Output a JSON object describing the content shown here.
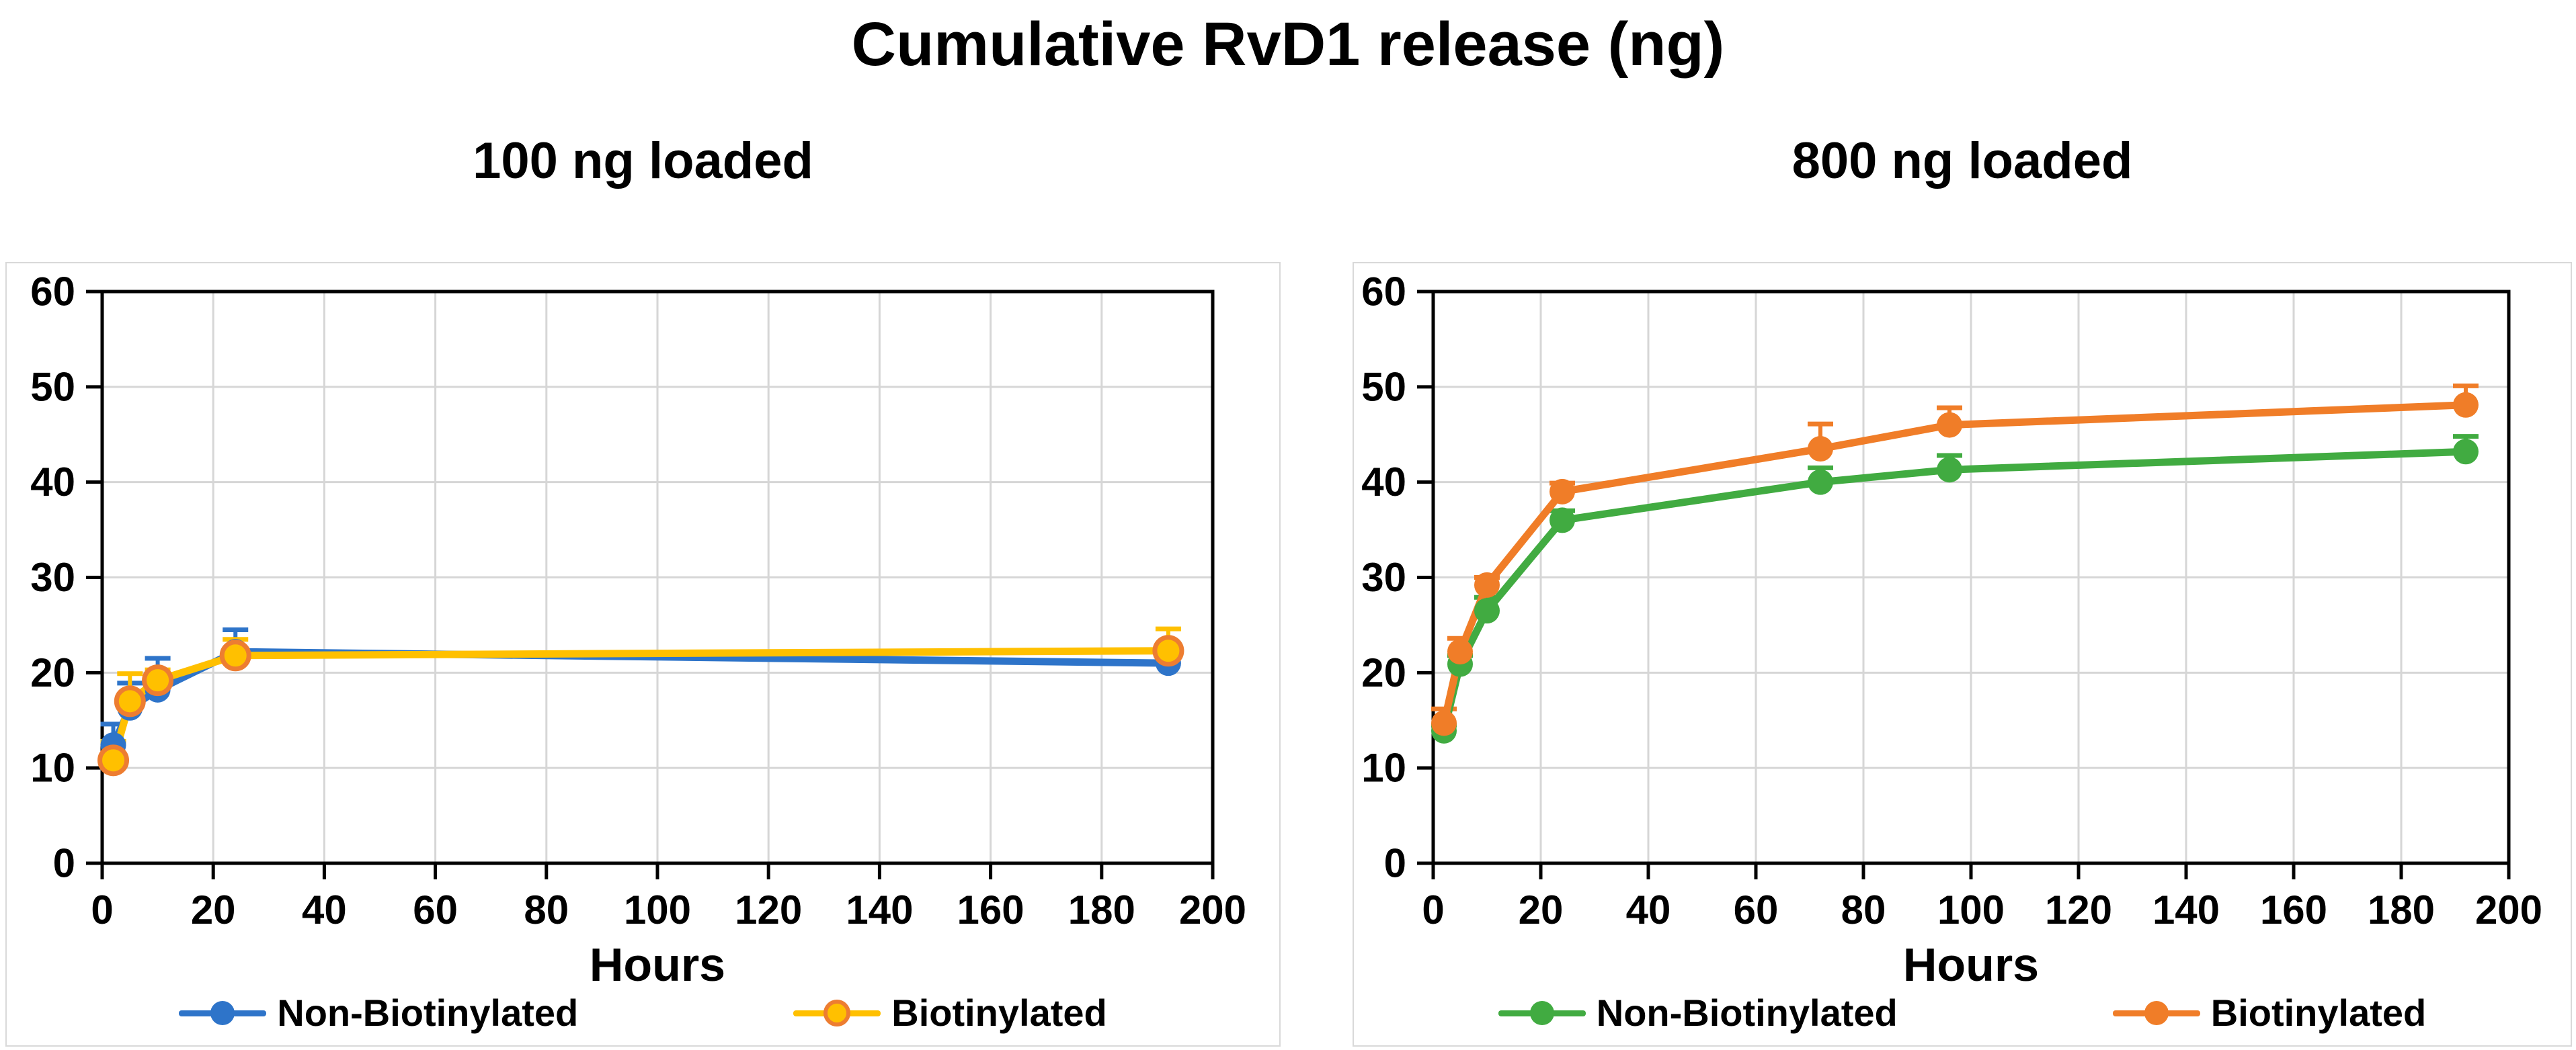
{
  "title": "Cumulative RvD1 release (ng)",
  "chart_data": [
    {
      "type": "line",
      "title": "100 ng loaded",
      "xlabel": "Hours",
      "ylabel": "",
      "xlim": [
        0,
        200
      ],
      "ylim": [
        0,
        60
      ],
      "xticks": [
        0,
        20,
        40,
        60,
        80,
        100,
        120,
        140,
        160,
        180,
        200
      ],
      "yticks": [
        0,
        10,
        20,
        30,
        40,
        50,
        60
      ],
      "grid": true,
      "legend_position": "bottom",
      "x": [
        2,
        5,
        10,
        24,
        192
      ],
      "series": [
        {
          "name": "Non-Biotinylated",
          "color": "#2E74C9",
          "marker": {
            "fill": "#2E74C9"
          },
          "values": [
            12.4,
            16.3,
            18.2,
            22.2,
            21.0
          ],
          "err_up": [
            2.2,
            2.6,
            3.3,
            2.3,
            0
          ]
        },
        {
          "name": "Biotinylated",
          "color": "#FFC000",
          "marker": {
            "fill": "#FFC000",
            "stroke": "#ED7D31"
          },
          "values": [
            10.8,
            17.0,
            19.2,
            21.8,
            22.3
          ],
          "err_up": [
            2.0,
            2.9,
            1.1,
            1.7,
            2.3
          ]
        }
      ]
    },
    {
      "type": "line",
      "title": "800 ng loaded",
      "xlabel": "Hours",
      "ylabel": "",
      "xlim": [
        0,
        200
      ],
      "ylim": [
        0,
        60
      ],
      "xticks": [
        0,
        20,
        40,
        60,
        80,
        100,
        120,
        140,
        160,
        180,
        200
      ],
      "yticks": [
        0,
        10,
        20,
        30,
        40,
        50,
        60
      ],
      "grid": true,
      "legend_position": "bottom",
      "x": [
        2,
        5,
        10,
        24,
        72,
        96,
        192
      ],
      "series": [
        {
          "name": "Non-Biotinylated",
          "color": "#41AB41",
          "marker": {
            "fill": "#41AB41"
          },
          "values": [
            13.9,
            20.9,
            26.5,
            36.0,
            40.0,
            41.3,
            43.2
          ],
          "err_up": [
            0.6,
            0.9,
            1.4,
            1.0,
            1.5,
            1.5,
            1.6
          ]
        },
        {
          "name": "Biotinylated",
          "color": "#F07D28",
          "marker": {
            "fill": "#F07D28"
          },
          "values": [
            14.7,
            22.2,
            29.2,
            39.0,
            43.5,
            46.0,
            48.1
          ],
          "err_up": [
            1.5,
            1.4,
            0.8,
            0.9,
            2.6,
            1.8,
            2.0
          ]
        }
      ]
    }
  ],
  "colors": {
    "grid": "#D6D6D6",
    "axis": "#000000",
    "chart_border": "#D9D9D9"
  }
}
